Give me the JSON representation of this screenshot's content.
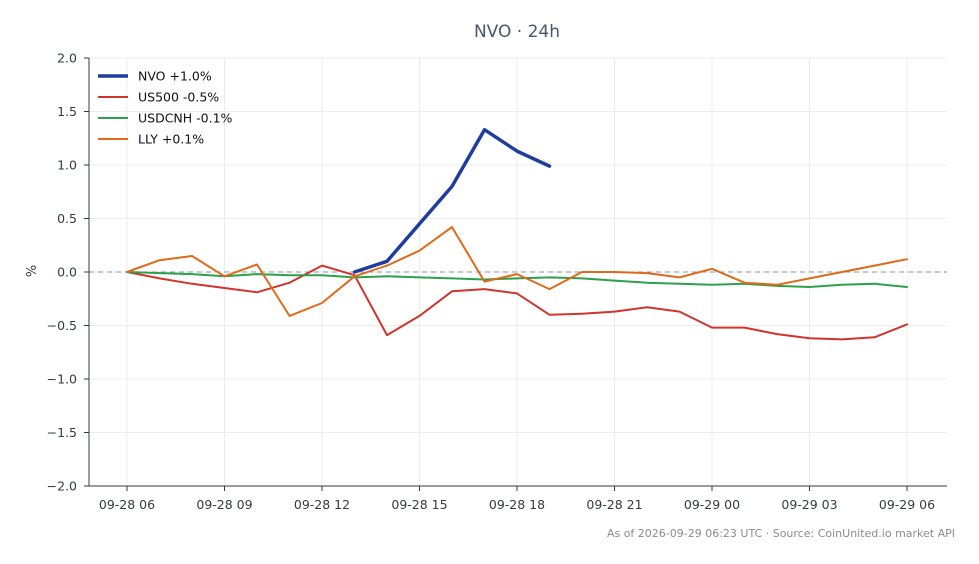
{
  "chart_data": {
    "type": "line",
    "title": "NVO · 24h",
    "xlabel": "",
    "ylabel": "%",
    "ylim": [
      -2.0,
      2.0
    ],
    "y_ticks": [
      2.0,
      1.5,
      1.0,
      0.5,
      0.0,
      -0.5,
      -1.0,
      -1.5,
      -2.0
    ],
    "y_tick_labels": [
      "2.0",
      "1.5",
      "1.0",
      "0.5",
      "0.0",
      "−0.5",
      "−1.0",
      "−1.5",
      "−2.0"
    ],
    "x_ticks": [
      "09-28 06",
      "09-28 09",
      "09-28 12",
      "09-28 15",
      "09-28 18",
      "09-28 21",
      "09-29 00",
      "09-29 03",
      "09-29 06"
    ],
    "x_tick_hours": [
      0,
      3,
      6,
      9,
      12,
      15,
      18,
      21,
      24
    ],
    "x_unit": "hours from 09-28 06:00",
    "grid": true,
    "zero_line": true,
    "legend_position": "top-left",
    "series": [
      {
        "name": "NVO +1.0%",
        "color": "#1f3d9e",
        "width": "thick",
        "x": [
          7,
          8,
          9,
          10,
          11,
          12,
          13
        ],
        "values": [
          0.0,
          0.1,
          0.45,
          0.8,
          1.33,
          1.13,
          0.99
        ]
      },
      {
        "name": "US500 -0.5%",
        "color": "#d0342c",
        "width": "normal",
        "x": [
          0,
          1,
          2,
          3,
          4,
          5,
          6,
          7,
          8,
          9,
          10,
          11,
          12,
          13,
          14,
          15,
          16,
          17,
          18,
          19,
          20,
          21,
          22,
          23,
          24
        ],
        "values": [
          0.0,
          -0.06,
          -0.11,
          -0.15,
          -0.19,
          -0.1,
          0.06,
          -0.03,
          -0.59,
          -0.41,
          -0.18,
          -0.16,
          -0.2,
          -0.4,
          -0.39,
          -0.37,
          -0.33,
          -0.37,
          -0.52,
          -0.52,
          -0.58,
          -0.62,
          -0.63,
          -0.61,
          -0.49
        ]
      },
      {
        "name": "USDCNH -0.1%",
        "color": "#2ca04c",
        "width": "normal",
        "x": [
          0,
          1,
          2,
          3,
          4,
          5,
          6,
          7,
          8,
          9,
          10,
          11,
          12,
          13,
          14,
          15,
          16,
          17,
          18,
          19,
          20,
          21,
          22,
          23,
          24
        ],
        "values": [
          0.0,
          -0.01,
          -0.02,
          -0.04,
          -0.02,
          -0.03,
          -0.03,
          -0.05,
          -0.04,
          -0.05,
          -0.06,
          -0.07,
          -0.06,
          -0.05,
          -0.06,
          -0.08,
          -0.1,
          -0.11,
          -0.12,
          -0.11,
          -0.13,
          -0.14,
          -0.12,
          -0.11,
          -0.14
        ]
      },
      {
        "name": "LLY +0.1%",
        "color": "#e06a1a",
        "width": "normal",
        "x": [
          0,
          1,
          2,
          3,
          4,
          5,
          6,
          7,
          8,
          9,
          10,
          11,
          12,
          13,
          14,
          15,
          16,
          17,
          18,
          19,
          20,
          21,
          22,
          23,
          24
        ],
        "values": [
          0.0,
          0.11,
          0.15,
          -0.04,
          0.07,
          -0.41,
          -0.29,
          -0.04,
          0.06,
          0.2,
          0.42,
          -0.09,
          -0.02,
          -0.16,
          0.0,
          0.0,
          -0.01,
          -0.05,
          0.03,
          -0.1,
          -0.12,
          -0.06,
          0.0,
          0.06,
          0.12
        ]
      }
    ],
    "footnote": "As of 2026-09-29 06:23 UTC · Source: CoinUnited.io market API"
  }
}
